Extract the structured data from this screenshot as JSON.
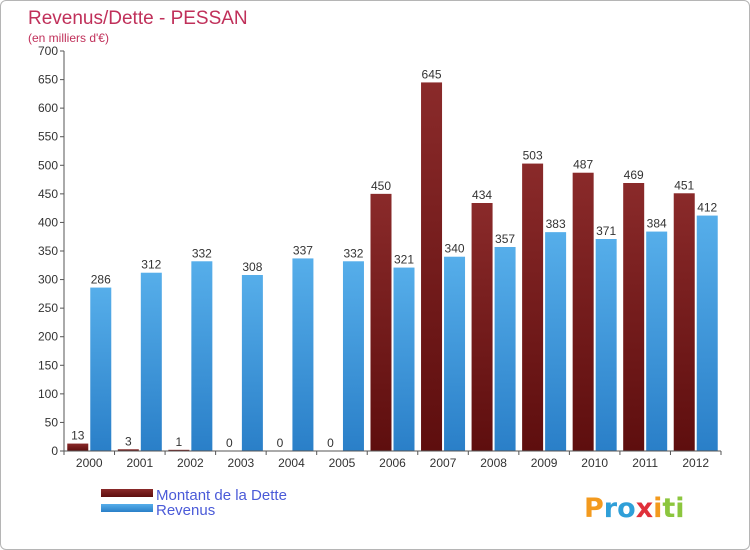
{
  "header": {
    "title": "Revenus/Dette - PESSAN",
    "subtitle": "(en milliers d'€)"
  },
  "brand": {
    "letters": [
      {
        "ch": "P",
        "color": "#f39a1e"
      },
      {
        "ch": "r",
        "color": "#2f9fd8"
      },
      {
        "ch": "o",
        "color": "#2f9fd8"
      },
      {
        "ch": "x",
        "color": "#e0303a"
      },
      {
        "ch": "i",
        "color": "#f39a1e"
      },
      {
        "ch": "t",
        "color": "#8cc63e"
      },
      {
        "ch": "i",
        "color": "#8cc63e"
      }
    ]
  },
  "chart_data": {
    "type": "bar",
    "title": "Revenus/Dette - PESSAN",
    "subtitle": "(en milliers d'€)",
    "xlabel": "",
    "ylabel": "",
    "ylim": [
      0,
      700
    ],
    "yticks": [
      0,
      50,
      100,
      150,
      200,
      250,
      300,
      350,
      400,
      450,
      500,
      550,
      600,
      650,
      700
    ],
    "grid": false,
    "legend_position": "bottom-left",
    "categories": [
      "2000",
      "2001",
      "2002",
      "2003",
      "2004",
      "2005",
      "2006",
      "2007",
      "2008",
      "2009",
      "2010",
      "2011",
      "2012"
    ],
    "series": [
      {
        "name": "Montant de la Dette",
        "color": "#7a1c1c",
        "values": [
          13,
          3,
          1,
          0,
          0,
          0,
          450,
          645,
          434,
          503,
          487,
          469,
          451
        ]
      },
      {
        "name": "Revenus",
        "color": "#4aa3e6",
        "values": [
          286,
          312,
          332,
          308,
          337,
          332,
          321,
          340,
          357,
          383,
          371,
          384,
          412
        ]
      }
    ]
  }
}
